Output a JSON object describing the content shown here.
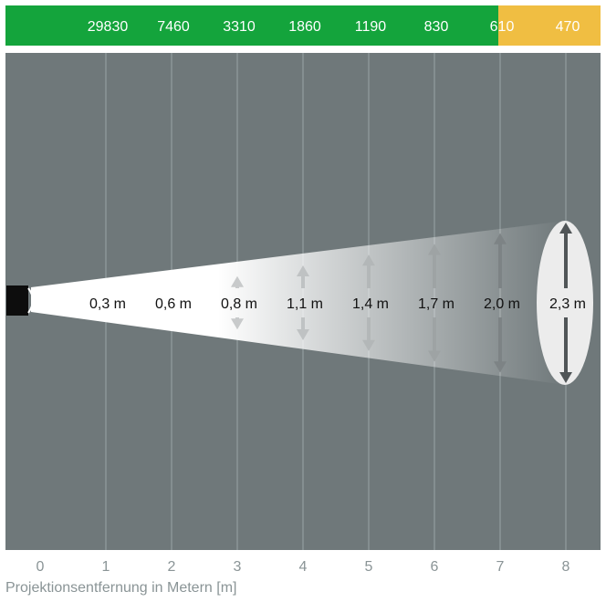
{
  "lux_values": [
    "29830",
    "7460",
    "3310",
    "1860",
    "1190",
    "830",
    "610",
    "470"
  ],
  "beam_widths": [
    "0,3 m",
    "0,6 m",
    "0,8 m",
    "1,1 m",
    "1,4 m",
    "1,7 m",
    "2,0 m",
    "2,3 m"
  ],
  "beam_width_values_m": [
    0.3,
    0.6,
    0.8,
    1.1,
    1.4,
    1.7,
    2.0,
    2.3
  ],
  "distance_ticks": [
    "0",
    "1",
    "2",
    "3",
    "4",
    "5",
    "6",
    "7",
    "8"
  ],
  "x_axis_label": "Projektionsentfernung in Metern [m]",
  "colors": {
    "lux_bar_green": "#14a43c",
    "lux_bar_yellow": "#f0be42",
    "background": "#6f787a",
    "grid_lines": "#9aa3a5",
    "beam": "#ffffff",
    "arrows_light": "#c8cacb",
    "arrows_dark": "#505557",
    "axis_text": "#8a9496"
  },
  "lux_highlight_from_index": 7
}
